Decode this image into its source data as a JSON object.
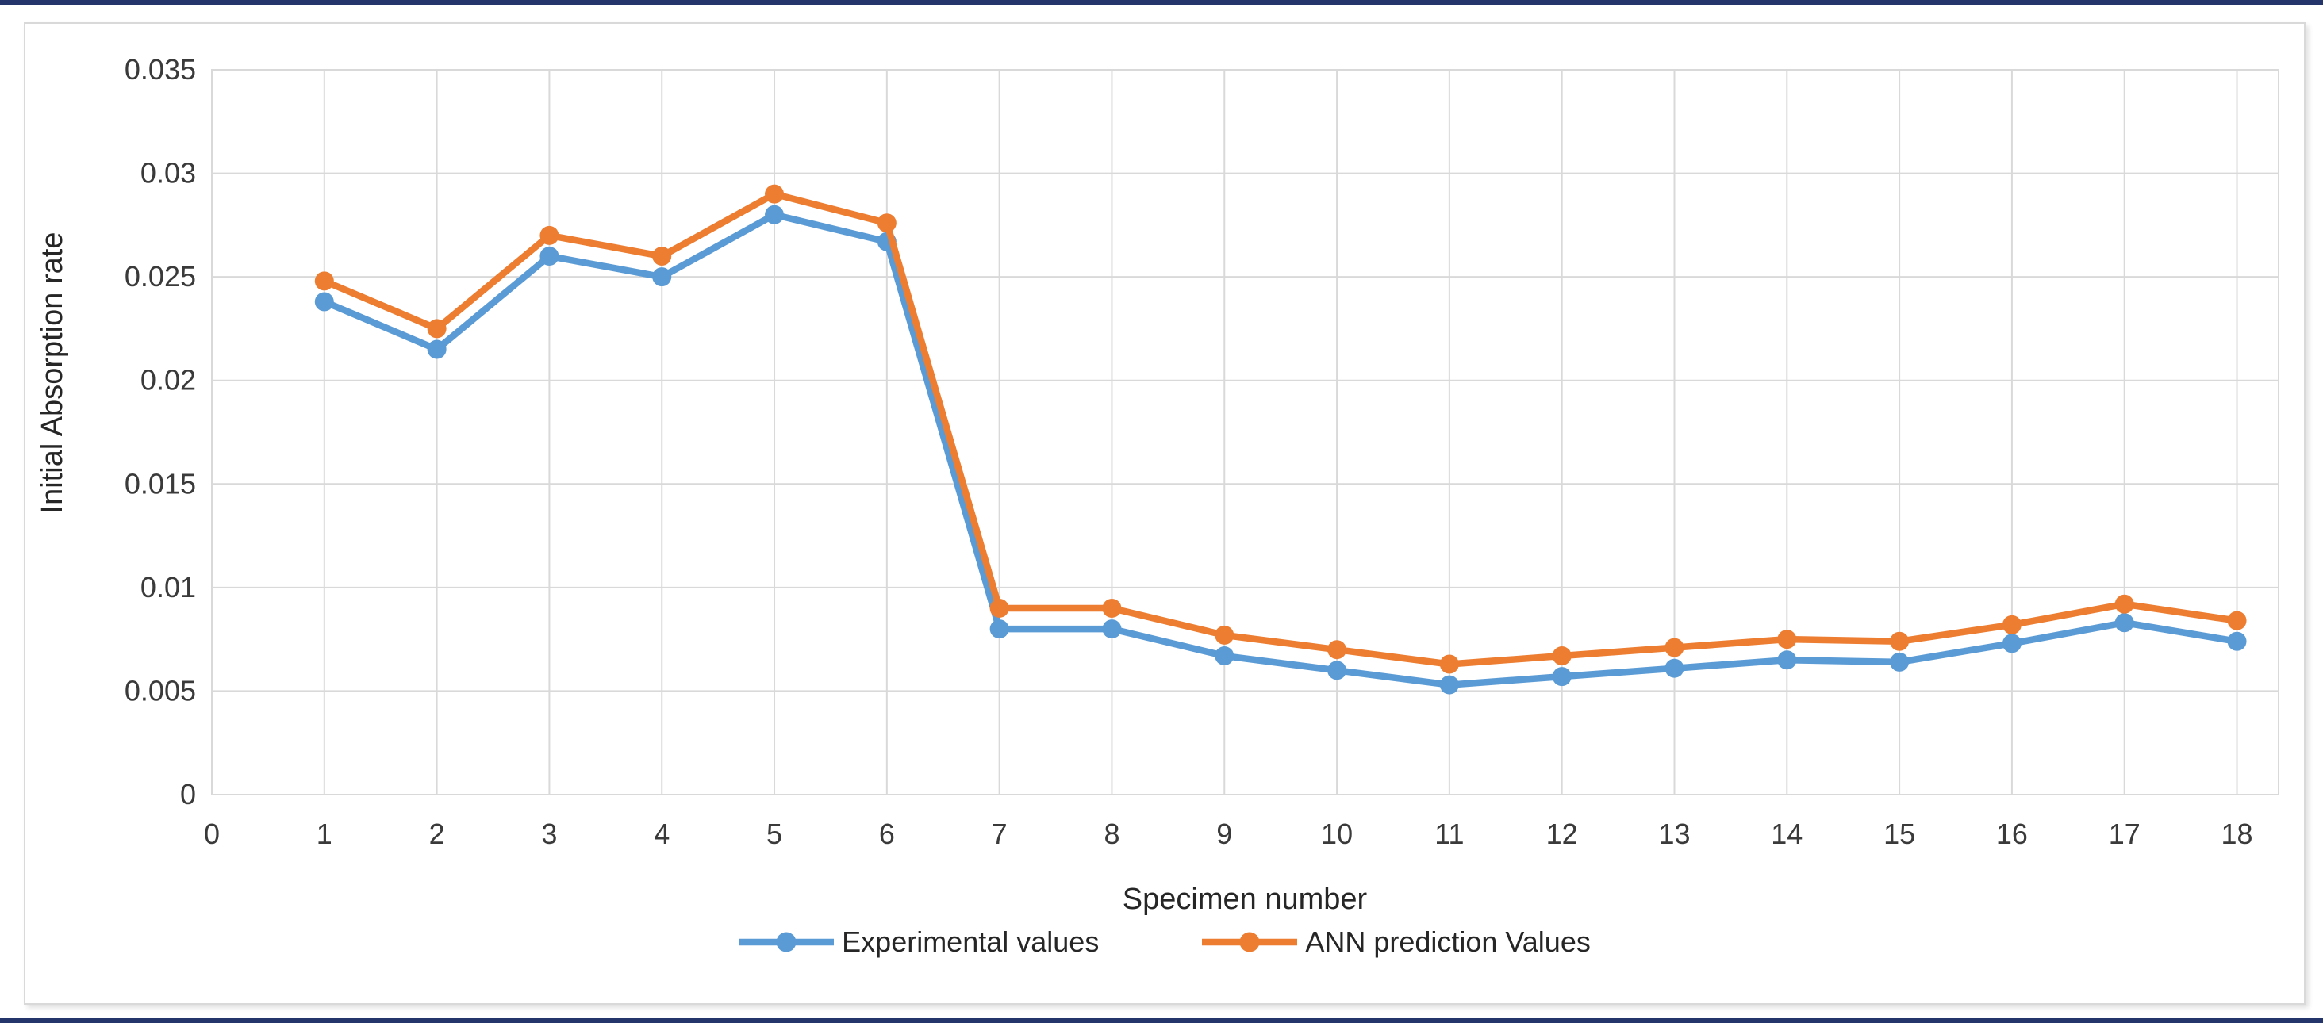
{
  "figure": {
    "top_rule_color": "#24356b",
    "bottom_rule_color": "#24356b",
    "frame_border_color": "#d9d9d9",
    "background_color": "#ffffff"
  },
  "chart_data": {
    "type": "line",
    "title": "",
    "xlabel": "Specimen number",
    "ylabel": "Initial Absorption rate",
    "grid": true,
    "legend_position": "bottom",
    "xlim": [
      0,
      18.37
    ],
    "ylim": [
      0,
      0.035
    ],
    "x_ticks": [
      0,
      1,
      2,
      3,
      4,
      5,
      6,
      7,
      8,
      9,
      10,
      11,
      12,
      13,
      14,
      15,
      16,
      17,
      18
    ],
    "y_ticks": [
      0,
      0.005,
      0.01,
      0.015,
      0.02,
      0.025,
      0.03,
      0.035
    ],
    "y_tick_labels": [
      "0",
      "0.005",
      "0.01",
      "0.015",
      "0.02",
      "0.025",
      "0.03",
      "0.035"
    ],
    "x": [
      1,
      2,
      3,
      4,
      5,
      6,
      7,
      8,
      9,
      10,
      11,
      12,
      13,
      14,
      15,
      16,
      17,
      18
    ],
    "gridline_color": "#d9d9d9",
    "tick_label_color": "#3a3a3a",
    "series": [
      {
        "name": "Experimental values",
        "color": "#5B9BD5",
        "values": [
          0.0238,
          0.0215,
          0.026,
          0.025,
          0.028,
          0.0267,
          0.008,
          0.008,
          0.0067,
          0.006,
          0.0053,
          0.0057,
          0.0061,
          0.0065,
          0.0064,
          0.0073,
          0.0083,
          0.0074
        ]
      },
      {
        "name": "ANN prediction Values",
        "color": "#ED7D31",
        "values": [
          0.0248,
          0.0225,
          0.027,
          0.026,
          0.029,
          0.0276,
          0.009,
          0.009,
          0.0077,
          0.007,
          0.0063,
          0.0067,
          0.0071,
          0.0075,
          0.0074,
          0.0082,
          0.0092,
          0.0084
        ]
      }
    ]
  }
}
